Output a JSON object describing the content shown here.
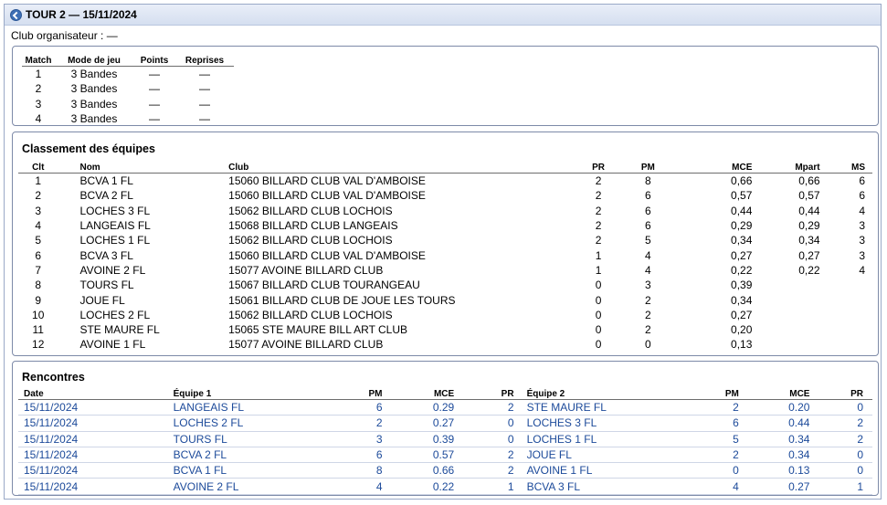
{
  "header": {
    "title": "TOUR 2 — 15/11/2024"
  },
  "organiser": "Club organisateur : —",
  "matches": {
    "columns": [
      "Match",
      "Mode de jeu",
      "Points",
      "Reprises"
    ],
    "rows": [
      {
        "match": "1",
        "mode": "3 Bandes",
        "points": "—",
        "reprises": "—"
      },
      {
        "match": "2",
        "mode": "3 Bandes",
        "points": "—",
        "reprises": "—"
      },
      {
        "match": "3",
        "mode": "3 Bandes",
        "points": "—",
        "reprises": "—"
      },
      {
        "match": "4",
        "mode": "3 Bandes",
        "points": "—",
        "reprises": "—"
      }
    ]
  },
  "ranking": {
    "title": "Classement des équipes",
    "columns": {
      "clt": "Clt",
      "nom": "Nom",
      "club": "Club",
      "pr": "PR",
      "pm": "PM",
      "mce": "MCE",
      "mpart": "Mpart",
      "ms": "MS"
    },
    "rows": [
      {
        "clt": "1",
        "nom": "BCVA 1 FL",
        "club": "15060 BILLARD CLUB VAL D'AMBOISE",
        "pr": "2",
        "pm": "8",
        "mce": "0,66",
        "mpart": "0,66",
        "ms": "6"
      },
      {
        "clt": "2",
        "nom": "BCVA 2 FL",
        "club": "15060 BILLARD CLUB VAL D'AMBOISE",
        "pr": "2",
        "pm": "6",
        "mce": "0,57",
        "mpart": "0,57",
        "ms": "6"
      },
      {
        "clt": "3",
        "nom": "LOCHES 3 FL",
        "club": "15062 BILLARD CLUB LOCHOIS",
        "pr": "2",
        "pm": "6",
        "mce": "0,44",
        "mpart": "0,44",
        "ms": "4"
      },
      {
        "clt": "4",
        "nom": "LANGEAIS FL",
        "club": "15068 BILLARD CLUB LANGEAIS",
        "pr": "2",
        "pm": "6",
        "mce": "0,29",
        "mpart": "0,29",
        "ms": "3"
      },
      {
        "clt": "5",
        "nom": "LOCHES 1 FL",
        "club": "15062 BILLARD CLUB LOCHOIS",
        "pr": "2",
        "pm": "5",
        "mce": "0,34",
        "mpart": "0,34",
        "ms": "3"
      },
      {
        "clt": "6",
        "nom": "BCVA 3 FL",
        "club": "15060 BILLARD CLUB VAL D'AMBOISE",
        "pr": "1",
        "pm": "4",
        "mce": "0,27",
        "mpart": "0,27",
        "ms": "3"
      },
      {
        "clt": "7",
        "nom": "AVOINE 2 FL",
        "club": "15077 AVOINE BILLARD CLUB",
        "pr": "1",
        "pm": "4",
        "mce": "0,22",
        "mpart": "0,22",
        "ms": "4"
      },
      {
        "clt": "8",
        "nom": "TOURS FL",
        "club": "15067 BILLARD CLUB TOURANGEAU",
        "pr": "0",
        "pm": "3",
        "mce": "0,39",
        "mpart": "",
        "ms": ""
      },
      {
        "clt": "9",
        "nom": "JOUE FL",
        "club": "15061 BILLARD CLUB DE JOUE LES TOURS",
        "pr": "0",
        "pm": "2",
        "mce": "0,34",
        "mpart": "",
        "ms": ""
      },
      {
        "clt": "10",
        "nom": "LOCHES 2 FL",
        "club": "15062 BILLARD CLUB LOCHOIS",
        "pr": "0",
        "pm": "2",
        "mce": "0,27",
        "mpart": "",
        "ms": ""
      },
      {
        "clt": "11",
        "nom": "STE MAURE FL",
        "club": "15065 STE MAURE BILL ART CLUB",
        "pr": "0",
        "pm": "2",
        "mce": "0,20",
        "mpart": "",
        "ms": ""
      },
      {
        "clt": "12",
        "nom": "AVOINE 1 FL",
        "club": "15077 AVOINE BILLARD CLUB",
        "pr": "0",
        "pm": "0",
        "mce": "0,13",
        "mpart": "",
        "ms": ""
      }
    ]
  },
  "games": {
    "title": "Rencontres",
    "columns": {
      "date": "Date",
      "team1": "Équipe 1",
      "pm1": "PM",
      "mce1": "MCE",
      "pr1": "PR",
      "team2": "Équipe 2",
      "pm2": "PM",
      "mce2": "MCE",
      "pr2": "PR"
    },
    "rows": [
      {
        "date": "15/11/2024",
        "team1": "LANGEAIS FL",
        "pm1": "6",
        "mce1": "0.29",
        "pr1": "2",
        "team2": "STE MAURE FL",
        "pm2": "2",
        "mce2": "0.20",
        "pr2": "0"
      },
      {
        "date": "15/11/2024",
        "team1": "LOCHES 2 FL",
        "pm1": "2",
        "mce1": "0.27",
        "pr1": "0",
        "team2": "LOCHES 3 FL",
        "pm2": "6",
        "mce2": "0.44",
        "pr2": "2"
      },
      {
        "date": "15/11/2024",
        "team1": "TOURS FL",
        "pm1": "3",
        "mce1": "0.39",
        "pr1": "0",
        "team2": "LOCHES 1 FL",
        "pm2": "5",
        "mce2": "0.34",
        "pr2": "2"
      },
      {
        "date": "15/11/2024",
        "team1": "BCVA 2 FL",
        "pm1": "6",
        "mce1": "0.57",
        "pr1": "2",
        "team2": "JOUE FL",
        "pm2": "2",
        "mce2": "0.34",
        "pr2": "0"
      },
      {
        "date": "15/11/2024",
        "team1": "BCVA 1 FL",
        "pm1": "8",
        "mce1": "0.66",
        "pr1": "2",
        "team2": "AVOINE 1 FL",
        "pm2": "0",
        "mce2": "0.13",
        "pr2": "0"
      },
      {
        "date": "15/11/2024",
        "team1": "AVOINE 2 FL",
        "pm1": "4",
        "mce1": "0.22",
        "pr1": "1",
        "team2": "BCVA 3 FL",
        "pm2": "4",
        "mce2": "0.27",
        "pr2": "1"
      }
    ]
  },
  "colors": {
    "link": "#1c4a9a",
    "border": "#7d8aa8",
    "titlebar": "#dbe4f3",
    "back_icon": "#3e6fb5"
  }
}
